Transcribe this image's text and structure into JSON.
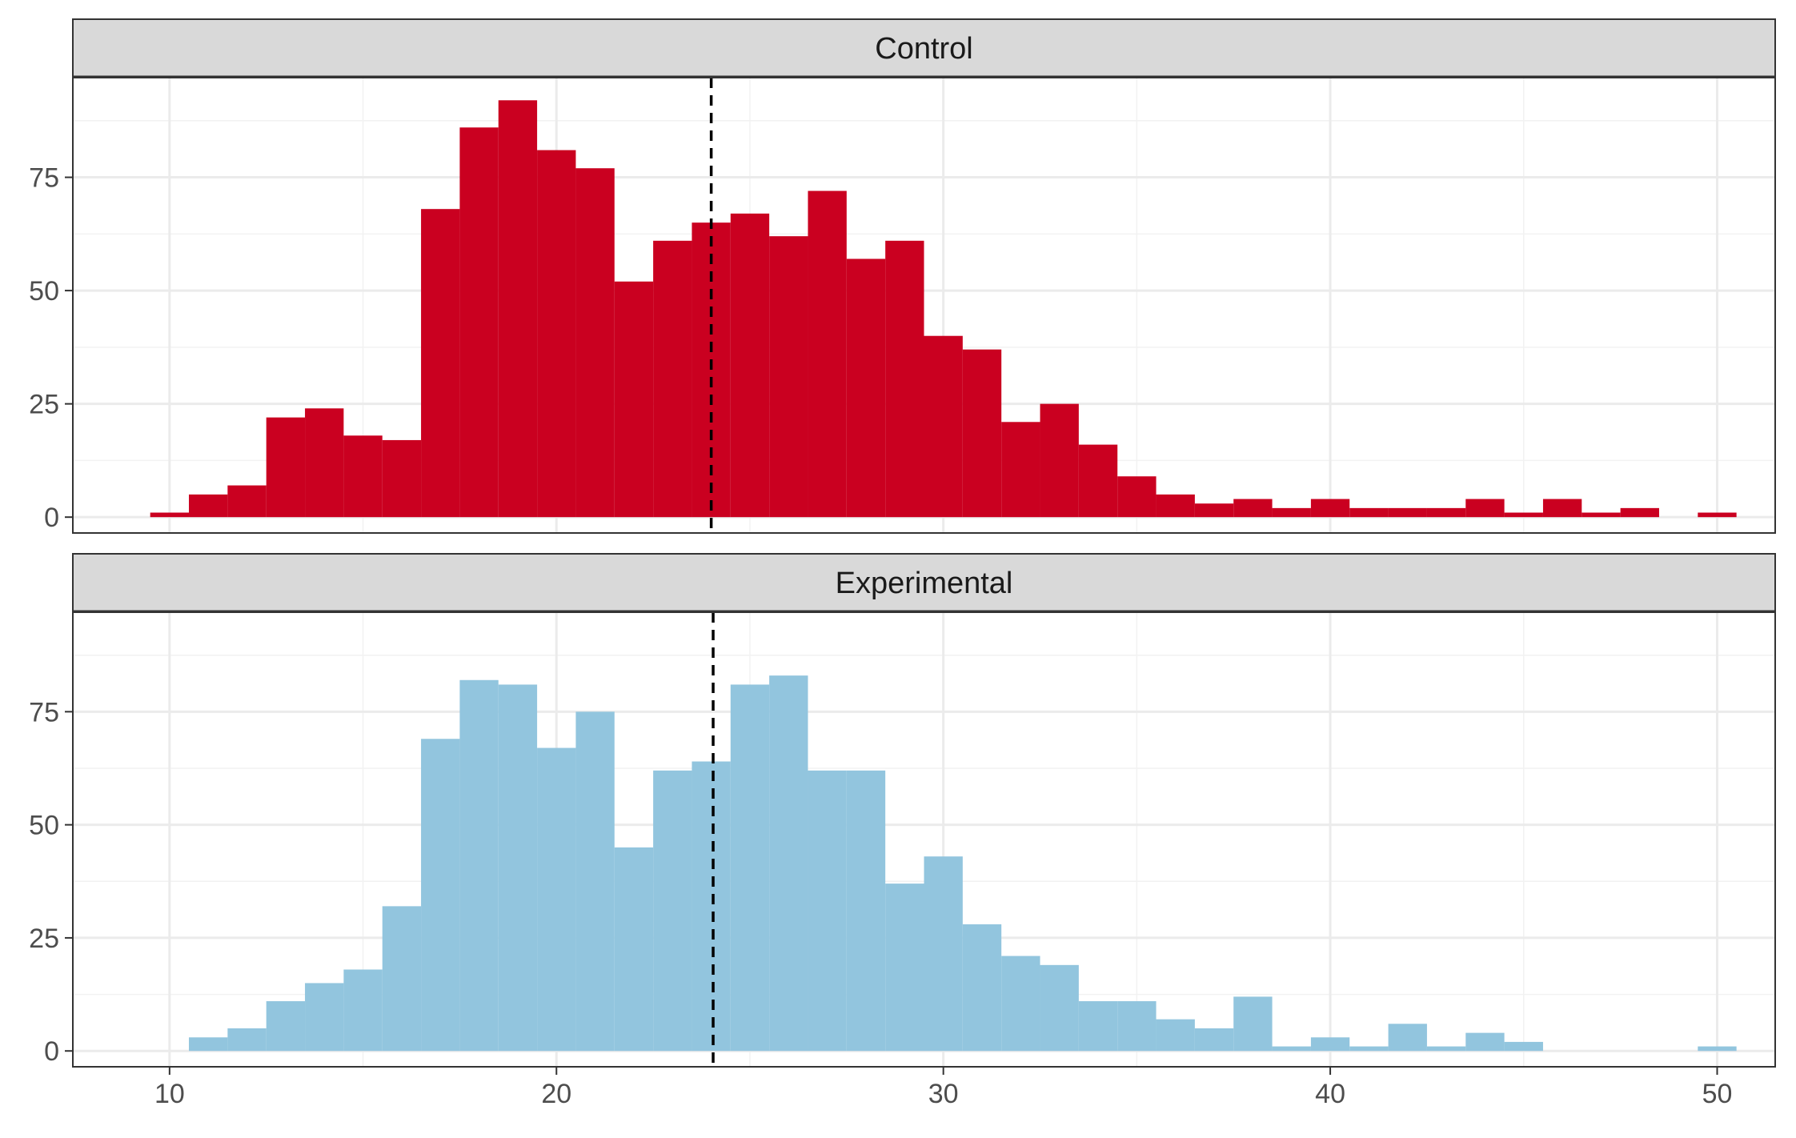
{
  "chart_data": {
    "type": "histogram",
    "layout": "faceted, two panels stacked vertically, shared x axis",
    "xlabel": "",
    "ylabel": "",
    "xlim": [
      7.5,
      51.5
    ],
    "ylim": [
      -3.5,
      97
    ],
    "x_ticks": [
      10,
      20,
      30,
      40,
      50
    ],
    "y_ticks": [
      0,
      25,
      50,
      75
    ],
    "bin_width": 1,
    "first_bin_start": 9.5,
    "grid": true,
    "facets": [
      {
        "label": "Control",
        "fill_color": "#CA0020",
        "mean_line": 24,
        "bin_counts": [
          1,
          5,
          7,
          22,
          24,
          18,
          17,
          68,
          86,
          92,
          81,
          77,
          52,
          61,
          65,
          67,
          62,
          72,
          57,
          61,
          40,
          37,
          21,
          25,
          16,
          9,
          5,
          3,
          4,
          2,
          4,
          2,
          2,
          2,
          4,
          1,
          4,
          1,
          2,
          0,
          1
        ]
      },
      {
        "label": "Experimental",
        "fill_color": "#92C5DE",
        "mean_line": 24.05,
        "bin_counts": [
          0,
          3,
          5,
          11,
          15,
          18,
          32,
          69,
          82,
          81,
          67,
          75,
          45,
          62,
          64,
          81,
          83,
          62,
          62,
          37,
          43,
          28,
          21,
          19,
          11,
          11,
          7,
          5,
          12,
          1,
          3,
          1,
          6,
          1,
          4,
          2,
          0,
          0,
          0,
          0,
          1
        ]
      }
    ]
  }
}
